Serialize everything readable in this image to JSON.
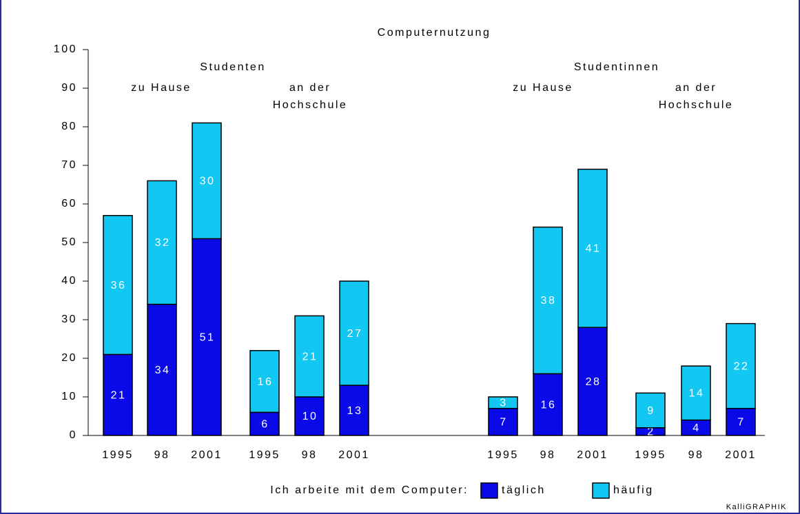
{
  "chart_data": {
    "type": "stacked-bar",
    "title": "Computernutzung",
    "annotations": [
      {
        "text": [
          "Studenten"
        ]
      },
      {
        "text": [
          "zu Hause"
        ]
      },
      {
        "text": [
          "an der",
          "Hochschule"
        ]
      },
      {
        "text": [
          "Studentinnen"
        ]
      },
      {
        "text": [
          "zu Hause"
        ]
      },
      {
        "text": [
          "an der",
          "Hochschule"
        ]
      }
    ],
    "categories": [
      "1995",
      "98",
      "2001",
      "1995",
      "98",
      "2001",
      "1995",
      "98",
      "2001",
      "1995",
      "98",
      "2001"
    ],
    "legend_title": "Ich arbeite mit dem Computer:",
    "series": [
      {
        "name": "täglich",
        "color": "#0a0ae8",
        "values": [
          21,
          34,
          51,
          6,
          10,
          13,
          7,
          16,
          28,
          2,
          4,
          7
        ]
      },
      {
        "name": "häufig",
        "color": "#12c8f2",
        "values": [
          36,
          32,
          30,
          16,
          21,
          27,
          3,
          38,
          41,
          9,
          14,
          22
        ]
      }
    ],
    "ylim": [
      0,
      100
    ],
    "yticks": [
      0,
      10,
      20,
      30,
      40,
      50,
      60,
      70,
      80,
      90,
      100
    ],
    "credit": "KalliGRAPHIK"
  }
}
